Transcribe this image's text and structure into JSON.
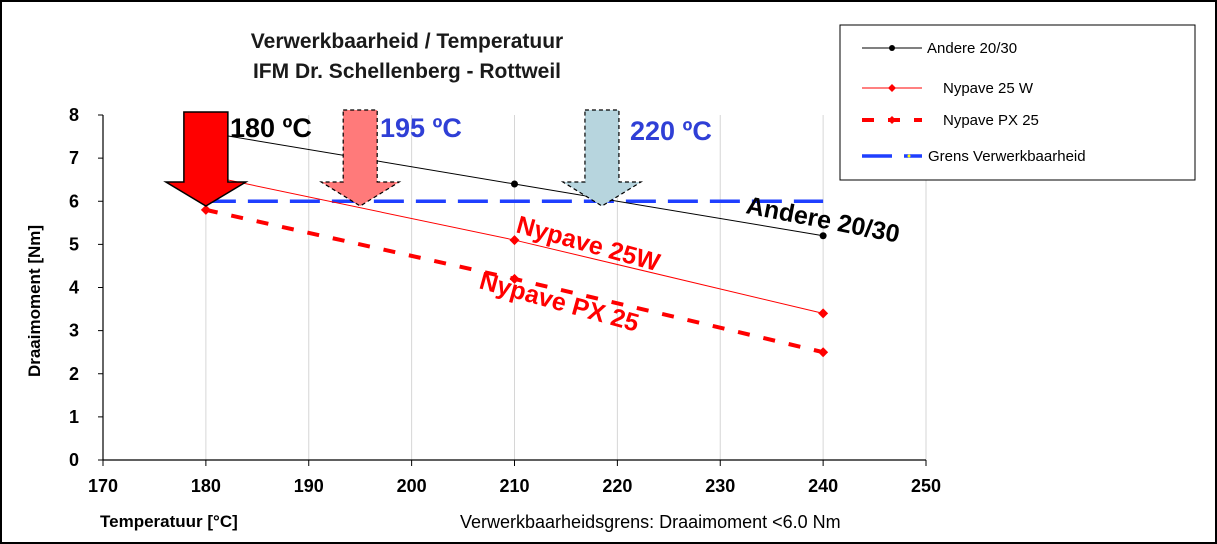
{
  "chart_data": {
    "type": "line",
    "title": "Verwerkbaarheid / Temperatuur",
    "subtitle": "IFM Dr. Schellenberg - Rottweil",
    "xlabel": "Temperatuur [°C]",
    "ylabel": "Draaimoment [Nm]",
    "note": "Verwerkbaarheidsgrens: Draaimoment  <6.0 Nm",
    "xlim": [
      170,
      250
    ],
    "ylim": [
      0,
      8
    ],
    "x_ticks": [
      "170",
      "180",
      "190",
      "200",
      "210",
      "220",
      "230",
      "240",
      "250"
    ],
    "y_ticks": [
      "0",
      "1",
      "2",
      "3",
      "4",
      "5",
      "6",
      "7",
      "8"
    ],
    "grid": "vertical",
    "legend_position": "top-right",
    "series": [
      {
        "name": "Andere 20/30",
        "x": [
          180,
          210,
          240
        ],
        "y": [
          7.6,
          6.4,
          5.2
        ],
        "color": "#000000",
        "style": "solid-thin"
      },
      {
        "name": "Nypave 25 W",
        "x": [
          180,
          210,
          240
        ],
        "y": [
          6.6,
          5.1,
          3.4
        ],
        "color": "#ff0000",
        "style": "solid-thin"
      },
      {
        "name": "Nypave PX 25",
        "x": [
          180,
          210,
          240
        ],
        "y": [
          5.8,
          4.2,
          2.5
        ],
        "color": "#ff0000",
        "style": "dashed"
      },
      {
        "name": "Grens Verwerkbaarheid",
        "x": [
          180,
          240
        ],
        "y": [
          6.0,
          6.0
        ],
        "color": "#1f3fff",
        "style": "long-dash"
      }
    ],
    "annotations": {
      "temps": [
        {
          "text": "180 ºC",
          "x": 180,
          "color": "#000000"
        },
        {
          "text": "195 ºC",
          "x": 195,
          "color": "#2f3fd6"
        },
        {
          "text": "220 ºC",
          "x": 220,
          "color": "#2f3fd6"
        }
      ],
      "series_labels": [
        {
          "text": "Andere 20/30",
          "color": "#000000"
        },
        {
          "text": "Nypave 25W",
          "color": "#ff0000"
        },
        {
          "text": "Nypave PX 25",
          "color": "#ff0000"
        }
      ],
      "arrows": [
        {
          "x": 180,
          "fill": "#ff0000",
          "style": "solid"
        },
        {
          "x": 195,
          "fill": "#ff7a7a",
          "style": "dashed"
        },
        {
          "x": 218.5,
          "fill": "#b7d5de",
          "style": "dashed"
        }
      ]
    }
  }
}
